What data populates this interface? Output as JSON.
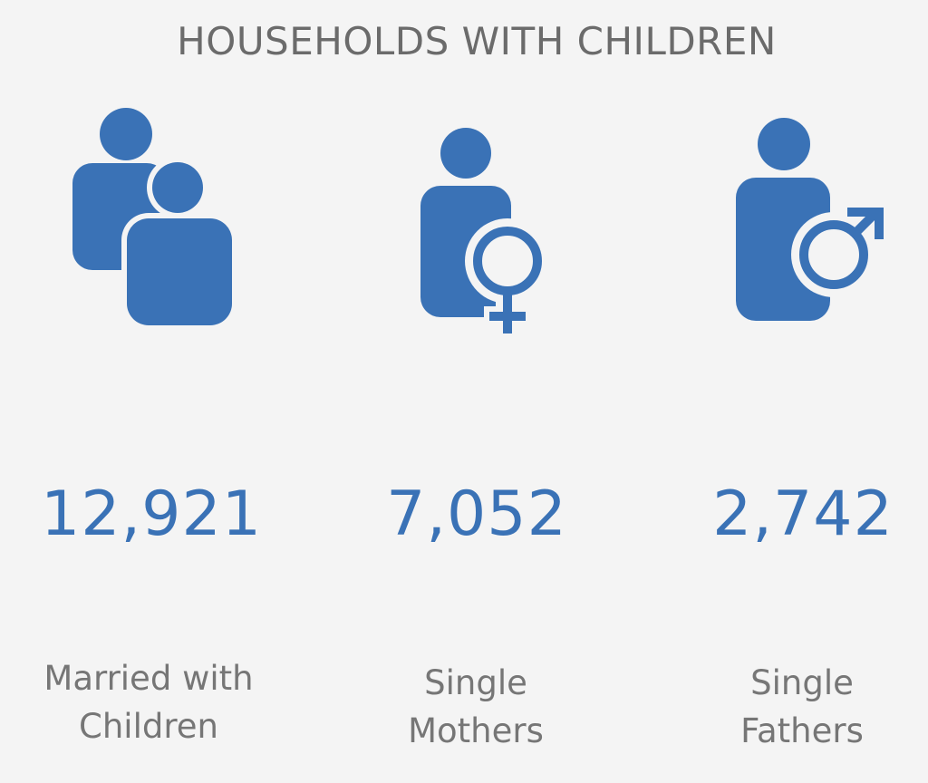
{
  "title": "HOUSEHOLDS WITH CHILDREN",
  "accent_color": "#3a72b6",
  "stats": [
    {
      "icon": "couple-icon",
      "value": "12,921",
      "label_lines": [
        "Married with",
        "Children"
      ]
    },
    {
      "icon": "single-mother-icon",
      "value": "7,052",
      "label_lines": [
        "Single",
        "Mothers"
      ]
    },
    {
      "icon": "single-father-icon",
      "value": "2,742",
      "label_lines": [
        "Single",
        "Fathers"
      ]
    }
  ]
}
